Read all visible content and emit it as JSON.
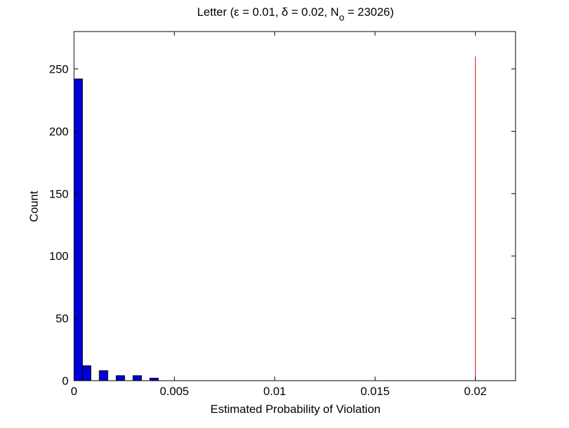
{
  "chart_data": {
    "type": "bar",
    "title": {
      "prefix": "Letter (ε = 0.01, δ = 0.02, N",
      "subscript": "o",
      "suffix": " = 23026)"
    },
    "xlabel": "Estimated Probability of Violation",
    "ylabel": "Count",
    "xlim": [
      0,
      0.022
    ],
    "ylim": [
      0,
      280
    ],
    "x_ticks": [
      {
        "value": 0,
        "label": "0"
      },
      {
        "value": 0.005,
        "label": "0.005"
      },
      {
        "value": 0.01,
        "label": "0.01"
      },
      {
        "value": 0.015,
        "label": "0.015"
      },
      {
        "value": 0.02,
        "label": "0.02"
      }
    ],
    "y_ticks": [
      {
        "value": 0,
        "label": "0"
      },
      {
        "value": 50,
        "label": "50"
      },
      {
        "value": 100,
        "label": "100"
      },
      {
        "value": 150,
        "label": "150"
      },
      {
        "value": 200,
        "label": "200"
      },
      {
        "value": 250,
        "label": "250"
      }
    ],
    "bins": [
      {
        "x0": 0.0,
        "x1": 0.00042,
        "count": 242
      },
      {
        "x0": 0.00042,
        "x1": 0.00084,
        "count": 12
      },
      {
        "x0": 0.00084,
        "x1": 0.00126,
        "count": 0
      },
      {
        "x0": 0.00126,
        "x1": 0.00168,
        "count": 8
      },
      {
        "x0": 0.00168,
        "x1": 0.0021,
        "count": 0
      },
      {
        "x0": 0.0021,
        "x1": 0.00252,
        "count": 4
      },
      {
        "x0": 0.00252,
        "x1": 0.00294,
        "count": 0
      },
      {
        "x0": 0.00294,
        "x1": 0.00336,
        "count": 4
      },
      {
        "x0": 0.00336,
        "x1": 0.00378,
        "count": 0
      },
      {
        "x0": 0.00378,
        "x1": 0.0042,
        "count": 2
      }
    ],
    "reference_line": {
      "x": 0.02,
      "y_top": 260,
      "color": "#e8312a"
    },
    "bar_color": "#0000d6",
    "bar_edge_color": "#000000",
    "grid": false,
    "legend": "none"
  }
}
